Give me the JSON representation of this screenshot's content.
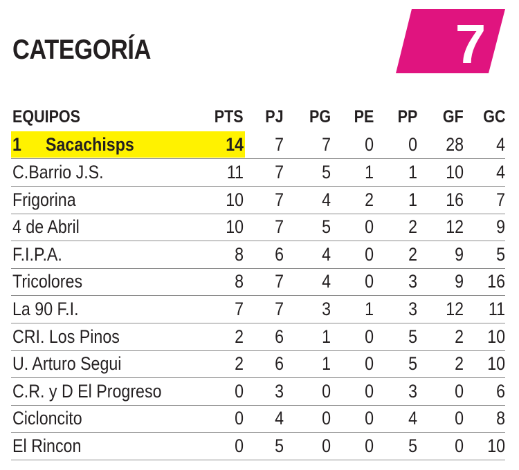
{
  "title": "CATEGORÍA",
  "category_number": "7",
  "badge_color": "#e0147f",
  "highlight_color": "#fff200",
  "columns": [
    "EQUIPOS",
    "PTS",
    "PJ",
    "PG",
    "PE",
    "PP",
    "GF",
    "GC"
  ],
  "leader": {
    "position": "1",
    "team": "Sacachisps",
    "stats": [
      "14",
      "7",
      "7",
      "0",
      "0",
      "28",
      "4"
    ]
  },
  "rows": [
    {
      "team": "C.Barrio J.S.",
      "stats": [
        "11",
        "7",
        "5",
        "1",
        "1",
        "10",
        "4"
      ]
    },
    {
      "team": "Frigorina",
      "stats": [
        "10",
        "7",
        "4",
        "2",
        "1",
        "16",
        "7"
      ]
    },
    {
      "team": "4 de Abril",
      "stats": [
        "10",
        "7",
        "5",
        "0",
        "2",
        "12",
        "9"
      ]
    },
    {
      "team": "F.I.P.A.",
      "stats": [
        "8",
        "6",
        "4",
        "0",
        "2",
        "9",
        "5"
      ]
    },
    {
      "team": "Tricolores",
      "stats": [
        "8",
        "7",
        "4",
        "0",
        "3",
        "9",
        "16"
      ]
    },
    {
      "team": "La 90 F.I.",
      "stats": [
        "7",
        "7",
        "3",
        "1",
        "3",
        "12",
        "11"
      ]
    },
    {
      "team": "CRI. Los Pinos",
      "stats": [
        "2",
        "6",
        "1",
        "0",
        "5",
        "2",
        "10"
      ]
    },
    {
      "team": "U. Arturo Segui",
      "stats": [
        "2",
        "6",
        "1",
        "0",
        "5",
        "2",
        "10"
      ]
    },
    {
      "team": "C.R. y D El Progreso",
      "stats": [
        "0",
        "3",
        "0",
        "0",
        "3",
        "0",
        "6"
      ]
    },
    {
      "team": "Cicloncito",
      "stats": [
        "0",
        "4",
        "0",
        "0",
        "4",
        "0",
        "8"
      ]
    },
    {
      "team": "El Rincon",
      "stats": [
        "0",
        "5",
        "0",
        "0",
        "5",
        "0",
        "10"
      ]
    }
  ]
}
